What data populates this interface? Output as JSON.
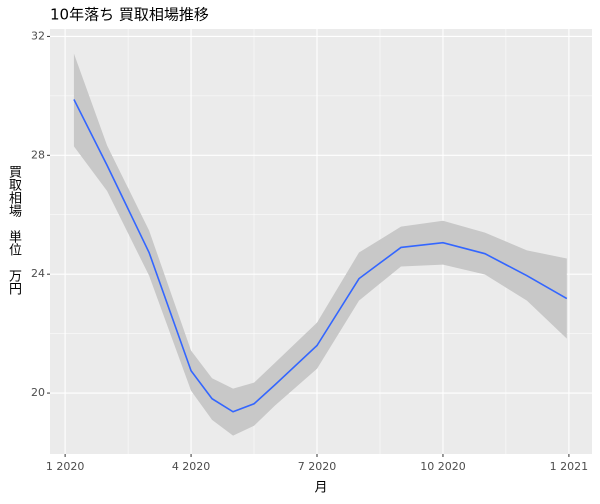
{
  "chart_data": {
    "type": "line",
    "title": "10年落ち 買取相場推移",
    "x_label": "月",
    "y_label": "買取相場　単位　万円",
    "x": [
      1.21,
      2,
      3,
      4,
      4.5,
      5,
      5.5,
      6,
      7,
      8,
      9,
      10,
      11,
      12,
      12.95
    ],
    "values": [
      29.88,
      27.66,
      24.73,
      20.75,
      19.81,
      19.37,
      19.64,
      20.28,
      21.6,
      23.85,
      24.9,
      25.06,
      24.69,
      23.95,
      23.18
    ],
    "band_upper": [
      31.42,
      28.33,
      25.47,
      21.43,
      20.5,
      20.15,
      20.35,
      21.02,
      22.37,
      24.73,
      25.6,
      25.8,
      25.4,
      24.8,
      24.53
    ],
    "band_lower": [
      28.3,
      26.8,
      23.95,
      20.08,
      19.1,
      18.57,
      18.9,
      19.58,
      20.82,
      23.11,
      24.26,
      24.32,
      23.99,
      23.11,
      21.83
    ],
    "color": "#3366FF",
    "band_color": "#C8C8C8",
    "xlim": [
      0.64,
      13.55
    ],
    "xticks": [
      {
        "value": 1,
        "label": "1 2020"
      },
      {
        "value": 4,
        "label": "4 2020"
      },
      {
        "value": 7,
        "label": "7 2020"
      },
      {
        "value": 10,
        "label": "10 2020"
      },
      {
        "value": 13,
        "label": "1 2021"
      }
    ],
    "ylim": [
      17.95,
      32.25
    ],
    "yticks": [
      20,
      24,
      28,
      32
    ],
    "grid": true
  }
}
